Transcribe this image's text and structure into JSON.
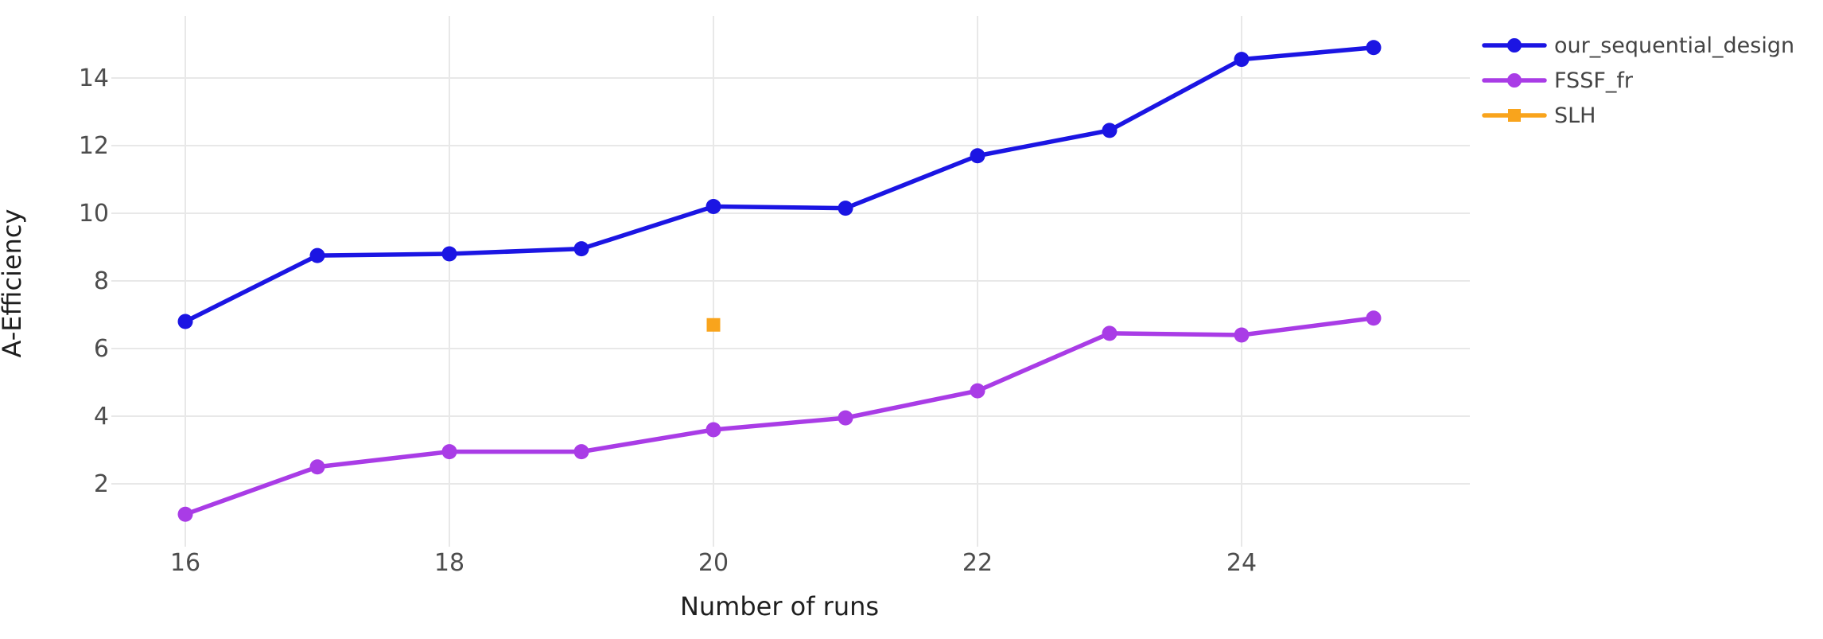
{
  "chart_data": {
    "type": "line",
    "title": "",
    "xlabel": "Number of runs",
    "ylabel": "A-Efficiency",
    "x_ticks": [
      16,
      18,
      20,
      22,
      24
    ],
    "y_ticks": [
      2,
      4,
      6,
      8,
      10,
      12,
      14
    ],
    "xlim": [
      15.4,
      25.7
    ],
    "ylim": [
      0.1,
      15.8
    ],
    "grid": true,
    "legend_position": "outside-top-right",
    "series": [
      {
        "name": "our_sequential_design",
        "color": "#1b15e3",
        "marker": "circle",
        "x": [
          16,
          17,
          18,
          19,
          20,
          21,
          22,
          23,
          24,
          25
        ],
        "y": [
          6.8,
          8.75,
          8.8,
          8.95,
          10.2,
          10.15,
          11.7,
          12.45,
          14.55,
          14.9
        ]
      },
      {
        "name": "FSSF_fr",
        "color": "#a93ce6",
        "marker": "circle",
        "x": [
          16,
          17,
          18,
          19,
          20,
          21,
          22,
          23,
          24,
          25
        ],
        "y": [
          1.1,
          2.5,
          2.95,
          2.95,
          3.6,
          3.95,
          4.75,
          6.45,
          6.4,
          6.9
        ]
      },
      {
        "name": "SLH",
        "color": "#f9a41c",
        "marker": "square",
        "x": [
          20
        ],
        "y": [
          6.7
        ]
      }
    ]
  },
  "styles": {
    "background": "#ffffff",
    "grid_color": "#e8e8e8",
    "tick_label_color": "#4d4d4d",
    "axis_title_color": "#1f1f1f",
    "legend_text_color": "#444444"
  }
}
